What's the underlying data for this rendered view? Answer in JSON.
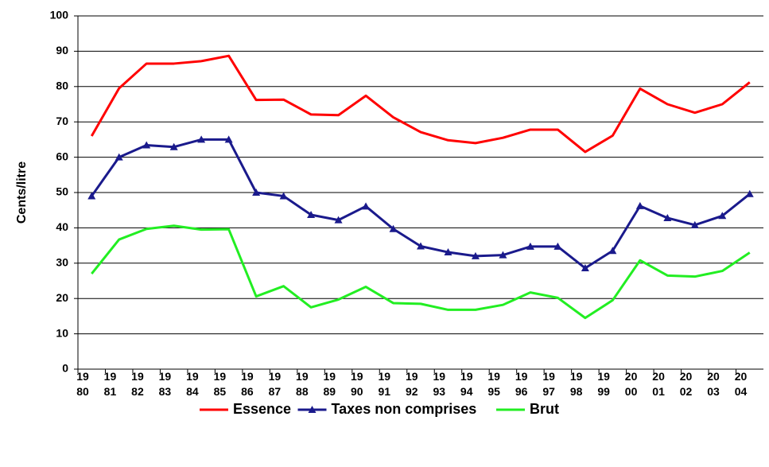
{
  "chart_data": {
    "type": "line",
    "y_label": "Cents/litre",
    "categories": [
      "1980",
      "1981",
      "1982",
      "1983",
      "1984",
      "1985",
      "1986",
      "1987",
      "1988",
      "1989",
      "1990",
      "1991",
      "1992",
      "1993",
      "1994",
      "1995",
      "1996",
      "1997",
      "1998",
      "1999",
      "2000",
      "2001",
      "2002",
      "2003",
      "2004"
    ],
    "series": [
      {
        "name": "Essence",
        "color": "#ff0000",
        "marker": "none",
        "values": [
          66,
          79.5,
          86.5,
          86.5,
          87.2,
          88.7,
          76.2,
          76.3,
          72.1,
          71.9,
          77.4,
          71.3,
          67.1,
          64.8,
          64,
          65.5,
          67.8,
          67.8,
          61.5,
          66.1,
          79.4,
          75,
          72.6,
          75,
          81.2
        ]
      },
      {
        "name": "Taxes non comprises",
        "color": "#1a1a8c",
        "marker": "triangle",
        "values": [
          49,
          60,
          63.4,
          62.9,
          65,
          65,
          50,
          49,
          43.7,
          42.2,
          46.1,
          39.7,
          34.8,
          33.1,
          32,
          32.3,
          34.7,
          34.7,
          28.6,
          33.5,
          46.2,
          42.8,
          40.8,
          43.4,
          49.6
        ]
      },
      {
        "name": "Brut",
        "color": "#22ee22",
        "marker": "none",
        "values": [
          27,
          36.7,
          39.7,
          40.6,
          39.5,
          39.6,
          20.6,
          23.5,
          17.5,
          19.7,
          23.3,
          18.7,
          18.5,
          16.8,
          16.8,
          18.2,
          21.7,
          20.2,
          14.5,
          19.5,
          30.8,
          26.5,
          26.2,
          27.8,
          33
        ]
      }
    ],
    "ylim": [
      0,
      100
    ],
    "yticks": [
      0,
      10,
      20,
      30,
      40,
      50,
      60,
      70,
      80,
      90,
      100
    ],
    "grid": true,
    "legend": "bottom"
  }
}
